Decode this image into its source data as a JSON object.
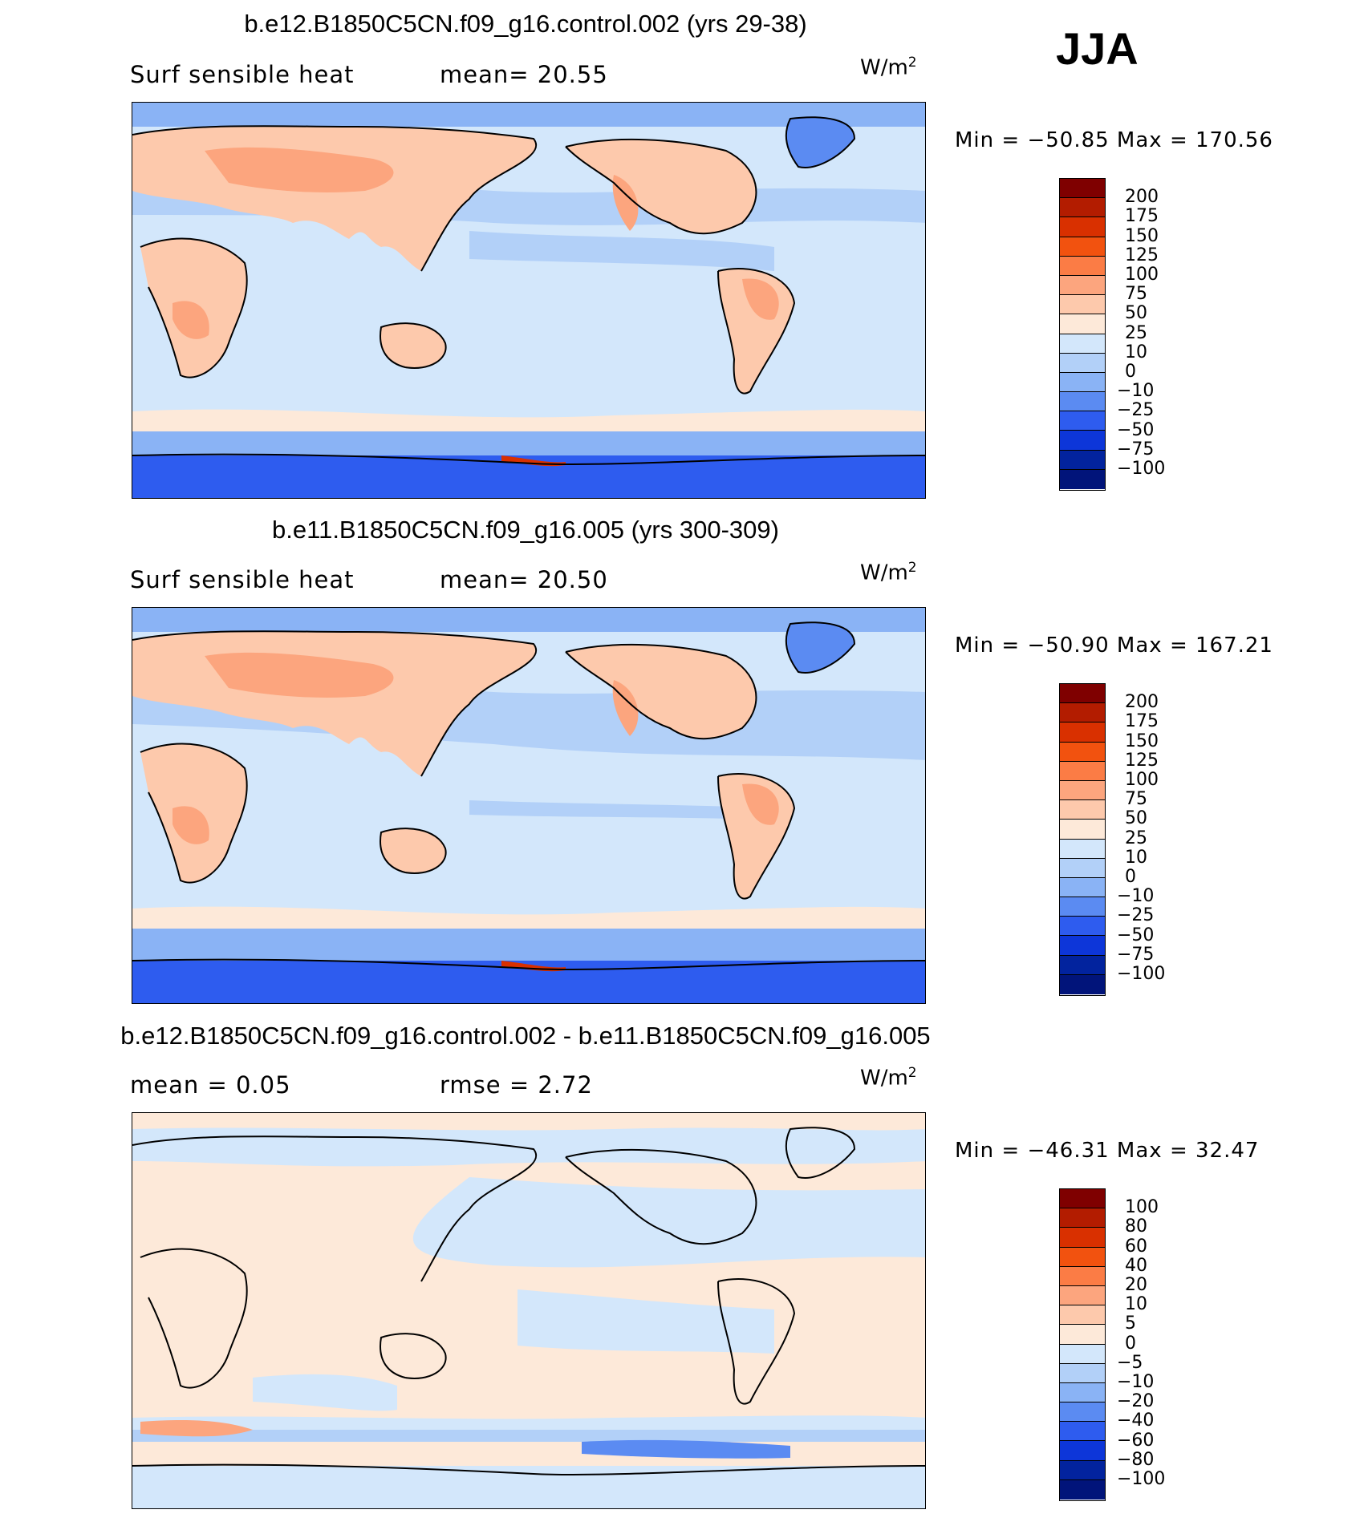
{
  "season": "JJA",
  "units_base": "W/m",
  "units_exp": "2",
  "panels": [
    {
      "title": "b.e12.B1850C5CN.f09_g16.control.002 (yrs 29-38)",
      "sub_left": "Surf  sensible  heat",
      "sub_mid": "mean=   20.55",
      "minmax": "Min  =  −50.85  Max  =  170.56",
      "colorbar": {
        "labels": [
          "200",
          "175",
          "150",
          "125",
          "100",
          "75",
          "50",
          "25",
          "10",
          "0",
          "−10",
          "−25",
          "−50",
          "−75",
          "−100"
        ],
        "colors": [
          "#7f0000",
          "#b31c00",
          "#d93000",
          "#f2520f",
          "#fb7c45",
          "#fca57e",
          "#fdc9ac",
          "#fde9d9",
          "#d3e7fb",
          "#b2d0f8",
          "#8ab3f5",
          "#5b8bf2",
          "#2e5cef",
          "#0d36d9",
          "#02239e",
          "#01147a"
        ]
      }
    },
    {
      "title": "b.e11.B1850C5CN.f09_g16.005 (yrs 300-309)",
      "sub_left": "Surf  sensible  heat",
      "sub_mid": "mean=   20.50",
      "minmax": "Min  =  −50.90  Max  =  167.21",
      "colorbar": {
        "labels": [
          "200",
          "175",
          "150",
          "125",
          "100",
          "75",
          "50",
          "25",
          "10",
          "0",
          "−10",
          "−25",
          "−50",
          "−75",
          "−100"
        ],
        "colors": [
          "#7f0000",
          "#b31c00",
          "#d93000",
          "#f2520f",
          "#fb7c45",
          "#fca57e",
          "#fdc9ac",
          "#fde9d9",
          "#d3e7fb",
          "#b2d0f8",
          "#8ab3f5",
          "#5b8bf2",
          "#2e5cef",
          "#0d36d9",
          "#02239e",
          "#01147a"
        ]
      }
    },
    {
      "title": "b.e12.B1850C5CN.f09_g16.control.002 - b.e11.B1850C5CN.f09_g16.005",
      "sub_left": "mean =     0.05",
      "sub_mid": "rmse =     2.72",
      "minmax": "Min  =  −46.31  Max  =    32.47",
      "colorbar": {
        "labels": [
          "100",
          "80",
          "60",
          "40",
          "20",
          "10",
          "5",
          "0",
          "−5",
          "−10",
          "−20",
          "−40",
          "−60",
          "−80",
          "−100"
        ],
        "colors": [
          "#7f0000",
          "#b31c00",
          "#d93000",
          "#f2520f",
          "#fb7c45",
          "#fca57e",
          "#fdc9ac",
          "#fde9d9",
          "#d3e7fb",
          "#b2d0f8",
          "#8ab3f5",
          "#5b8bf2",
          "#2e5cef",
          "#0d36d9",
          "#02239e",
          "#01147a"
        ]
      }
    }
  ]
}
